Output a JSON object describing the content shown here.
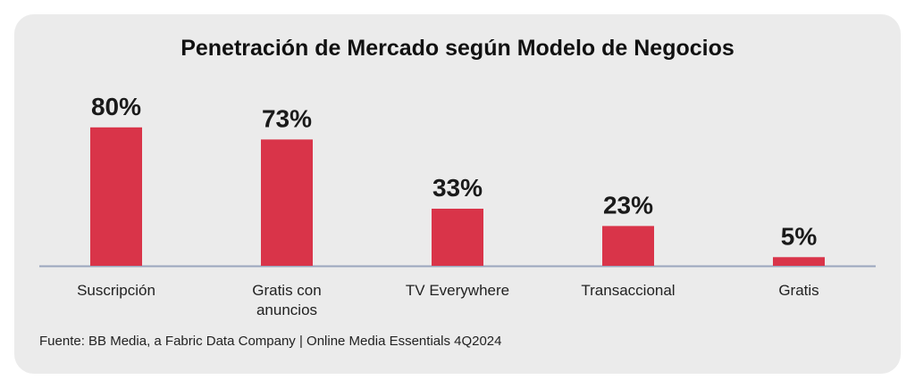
{
  "chart_data": {
    "type": "bar",
    "title": "Penetración de Mercado según Modelo de Negocios",
    "categories": [
      "Suscripción",
      "Gratis con\nanuncios",
      "TV Everywhere",
      "Transaccional",
      "Gratis"
    ],
    "values": [
      80,
      73,
      33,
      23,
      5
    ],
    "value_labels": [
      "80%",
      "73%",
      "33%",
      "23%",
      "5%"
    ],
    "unit": "%",
    "xlabel": "",
    "ylabel": "",
    "ylim": [
      0,
      100
    ],
    "grid": false,
    "legend": "none",
    "bar_color": "#d93449",
    "axis_color": "#9aa6bd"
  },
  "footer": "Fuente: BB Media, a Fabric Data Company | Online Media Essentials 4Q2024"
}
